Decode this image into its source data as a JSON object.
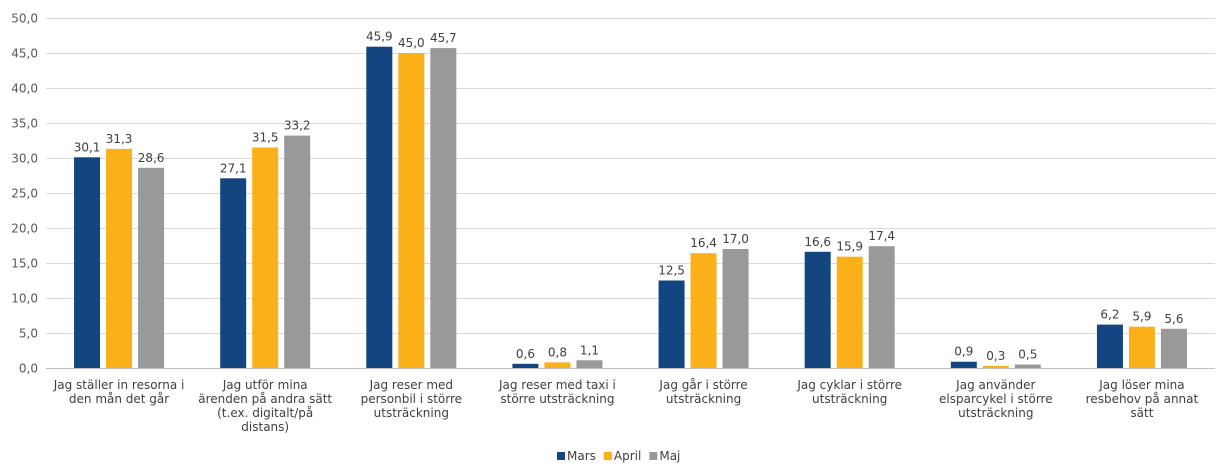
{
  "chart_data": {
    "type": "bar",
    "categories": [
      [
        "Jag ställer in resorna i",
        "den mån det går"
      ],
      [
        "Jag utför mina",
        "ärenden på andra sätt",
        "(t.ex. digitalt/på",
        "distans)"
      ],
      [
        "Jag reser med",
        "personbil i större",
        "utsträckning"
      ],
      [
        "Jag reser med taxi i",
        "större utsträckning"
      ],
      [
        "Jag går i större",
        "utsträckning"
      ],
      [
        "Jag cyklar i större",
        "utsträckning"
      ],
      [
        "Jag använder",
        "elsparcykel i större",
        "utsträckning"
      ],
      [
        "Jag löser mina",
        "resbehov på annat",
        "sätt"
      ]
    ],
    "series": [
      {
        "name": "Mars",
        "color": "#134581",
        "values": [
          30.1,
          27.1,
          45.9,
          0.6,
          12.5,
          16.6,
          0.9,
          6.2
        ],
        "labels": [
          "30,1",
          "27,1",
          "45,9",
          "0,6",
          "12,5",
          "16,6",
          "0,9",
          "6,2"
        ]
      },
      {
        "name": "April",
        "color": "#FBAF19",
        "values": [
          31.3,
          31.5,
          45.0,
          0.8,
          16.4,
          15.9,
          0.3,
          5.9
        ],
        "labels": [
          "31,3",
          "31,5",
          "45,0",
          "0,8",
          "16,4",
          "15,9",
          "0,3",
          "5,9"
        ]
      },
      {
        "name": "Maj",
        "color": "#999999",
        "values": [
          28.6,
          33.2,
          45.7,
          1.1,
          17.0,
          17.4,
          0.5,
          5.6
        ],
        "labels": [
          "28,6",
          "33,2",
          "45,7",
          "1,1",
          "17,0",
          "17,4",
          "0,5",
          "5,6"
        ]
      }
    ],
    "ylim": [
      0,
      50
    ],
    "yticks": [
      0,
      5,
      10,
      15,
      20,
      25,
      30,
      35,
      40,
      45,
      50
    ],
    "ytick_labels": [
      "0,0",
      "5,0",
      "10,0",
      "15,0",
      "20,0",
      "25,0",
      "30,0",
      "35,0",
      "40,0",
      "45,0",
      "50,0"
    ],
    "grid": true,
    "legend": "bottom"
  }
}
